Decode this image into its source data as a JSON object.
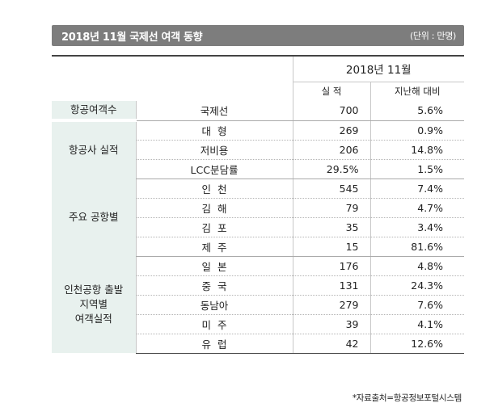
{
  "header": {
    "title": "2018년 11월 국제선 여객 동향",
    "unit": "(단위 : 만명)"
  },
  "table": {
    "period": "2018년 11월",
    "col_actual": "실  적",
    "col_yoy": "지난해 대비",
    "groups": [
      {
        "label": "항공여객수",
        "rows": [
          {
            "item": "국제선",
            "value": "700",
            "yoy": "5.6%"
          }
        ]
      },
      {
        "label": "항공사 실적",
        "rows": [
          {
            "item": "대  형",
            "value": "269",
            "yoy": "0.9%"
          },
          {
            "item": "저비용",
            "value": "206",
            "yoy": "14.8%"
          },
          {
            "item": "LCC분담률",
            "value": "29.5%",
            "yoy": "1.5%"
          }
        ]
      },
      {
        "label": "주요 공항별",
        "rows": [
          {
            "item": "인  천",
            "value": "545",
            "yoy": "7.4%"
          },
          {
            "item": "김  해",
            "value": "79",
            "yoy": "4.7%"
          },
          {
            "item": "김  포",
            "value": "35",
            "yoy": "3.4%"
          },
          {
            "item": "제  주",
            "value": "15",
            "yoy": "81.6%"
          }
        ]
      },
      {
        "label": "인천공항 출발\n지역별\n여객실적",
        "rows": [
          {
            "item": "일  본",
            "value": "176",
            "yoy": "4.8%"
          },
          {
            "item": "중  국",
            "value": "131",
            "yoy": "24.3%"
          },
          {
            "item": "동남아",
            "value": "279",
            "yoy": "7.6%"
          },
          {
            "item": "미  주",
            "value": "39",
            "yoy": "4.1%"
          },
          {
            "item": "유  럽",
            "value": "42",
            "yoy": "12.6%"
          }
        ]
      }
    ]
  },
  "footer": {
    "source": "*자료출처=항공정보포털시스템"
  }
}
